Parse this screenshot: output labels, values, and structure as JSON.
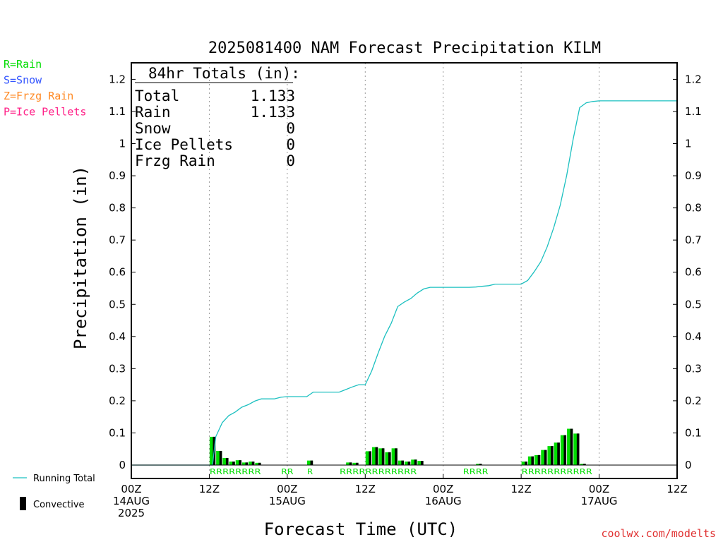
{
  "chart_data": {
    "type": "bar",
    "title": "2025081400 NAM Forecast Precipitation KILM",
    "xlabel": "Forecast Time (UTC)",
    "ylabel": "Precipitation (in)",
    "ylim": [
      0,
      1.25
    ],
    "xlim_hours": [
      0,
      84
    ],
    "y_ticks": [
      "0",
      "0.1",
      "0.2",
      "0.3",
      "0.4",
      "0.5",
      "0.6",
      "0.7",
      "0.8",
      "0.9",
      "1",
      "1.1",
      "1.2"
    ],
    "x_ticks": [
      {
        "hour": 0,
        "lines": [
          "00Z",
          "14AUG",
          "2025"
        ]
      },
      {
        "hour": 12,
        "lines": [
          "12Z"
        ]
      },
      {
        "hour": 24,
        "lines": [
          "00Z",
          "15AUG"
        ]
      },
      {
        "hour": 36,
        "lines": [
          "12Z"
        ]
      },
      {
        "hour": 48,
        "lines": [
          "00Z",
          "16AUG"
        ]
      },
      {
        "hour": 60,
        "lines": [
          "12Z"
        ]
      },
      {
        "hour": 72,
        "lines": [
          "00Z",
          "17AUG"
        ]
      },
      {
        "hour": 84,
        "lines": [
          "12Z"
        ]
      }
    ],
    "gridlines_at_hours": [
      12,
      24,
      36,
      48,
      60,
      72
    ],
    "hourly_precip": [
      [
        13,
        0.088
      ],
      [
        14,
        0.044
      ],
      [
        15,
        0.022
      ],
      [
        16,
        0.011
      ],
      [
        17,
        0.015
      ],
      [
        18,
        0.008
      ],
      [
        19,
        0.011
      ],
      [
        20,
        0.007
      ],
      [
        28,
        0.014
      ],
      [
        34,
        0.008
      ],
      [
        35,
        0.007
      ],
      [
        37,
        0.043
      ],
      [
        38,
        0.056
      ],
      [
        39,
        0.052
      ],
      [
        40,
        0.04
      ],
      [
        41,
        0.052
      ],
      [
        42,
        0.014
      ],
      [
        43,
        0.011
      ],
      [
        44,
        0.017
      ],
      [
        45,
        0.013
      ],
      [
        54,
        0.004
      ],
      [
        61,
        0.011
      ],
      [
        62,
        0.027
      ],
      [
        63,
        0.031
      ],
      [
        64,
        0.047
      ],
      [
        65,
        0.059
      ],
      [
        66,
        0.07
      ],
      [
        67,
        0.093
      ],
      [
        68,
        0.113
      ],
      [
        69,
        0.098
      ],
      [
        70,
        0.004
      ]
    ],
    "series": [
      {
        "name": "Running Total",
        "color": "#1cc0c0",
        "x": [
          0,
          12.5,
          13,
          14,
          15,
          16,
          17,
          18,
          19,
          20,
          21,
          22,
          23,
          24,
          25,
          26,
          27,
          28,
          29,
          30,
          31,
          32,
          33,
          34,
          35,
          36,
          37,
          38,
          39,
          40,
          41,
          42,
          43,
          44,
          45,
          46,
          47,
          48,
          49,
          50,
          51,
          52,
          53,
          54,
          55,
          56,
          57,
          58,
          59,
          60,
          61,
          62,
          63,
          64,
          65,
          66,
          67,
          68,
          69,
          70,
          71,
          72,
          84
        ],
        "values": [
          0,
          0,
          0.088,
          0.132,
          0.154,
          0.165,
          0.18,
          0.188,
          0.199,
          0.206,
          0.206,
          0.206,
          0.211,
          0.213,
          0.213,
          0.213,
          0.213,
          0.227,
          0.227,
          0.227,
          0.227,
          0.227,
          0.235,
          0.243,
          0.25,
          0.25,
          0.293,
          0.349,
          0.401,
          0.441,
          0.493,
          0.507,
          0.518,
          0.535,
          0.548,
          0.553,
          0.553,
          0.553,
          0.553,
          0.553,
          0.553,
          0.553,
          0.554,
          0.556,
          0.558,
          0.563,
          0.563,
          0.563,
          0.563,
          0.563,
          0.574,
          0.601,
          0.632,
          0.679,
          0.738,
          0.808,
          0.901,
          1.014,
          1.112,
          1.127,
          1.131,
          1.133,
          1.133
        ]
      },
      {
        "name": "Convective",
        "color": "#000000"
      }
    ],
    "precip_types": [
      {
        "text": "RRRRRRRR",
        "start_hour": 13
      },
      {
        "text": "RR",
        "start_hour": 24
      },
      {
        "text": "R",
        "start_hour": 28
      },
      {
        "text": "RRRRRRRRRRRR",
        "start_hour": 33
      },
      {
        "text": "RRRR",
        "start_hour": 52
      },
      {
        "text": "RRRRRRRRRRR",
        "start_hour": 61
      }
    ],
    "totals_box": {
      "header": "84hr Totals (in):",
      "rows": [
        {
          "label": "Total",
          "value": "1.133"
        },
        {
          "label": "Rain",
          "value": "1.133"
        },
        {
          "label": "Snow",
          "value": "0"
        },
        {
          "label": "Ice Pellets",
          "value": "0"
        },
        {
          "label": "Frzg Rain",
          "value": "0"
        }
      ]
    },
    "type_key": [
      {
        "text": "R=Rain",
        "color": "#00dd00"
      },
      {
        "text": "S=Snow",
        "color": "#3355ff"
      },
      {
        "text": "Z=Frzg Rain",
        "color": "#ff8822"
      },
      {
        "text": "P=Ice Pellets",
        "color": "#ff2288"
      }
    ],
    "legend": {
      "running_total": "Running Total",
      "convective": "Convective"
    },
    "colors": {
      "rain_bar": "#00dd00",
      "convective_bar": "#000000",
      "running_total": "#1cc0c0",
      "rain_text": "#00dd00",
      "grid": "#999999"
    },
    "credit": "coolwx.com/modelts"
  }
}
